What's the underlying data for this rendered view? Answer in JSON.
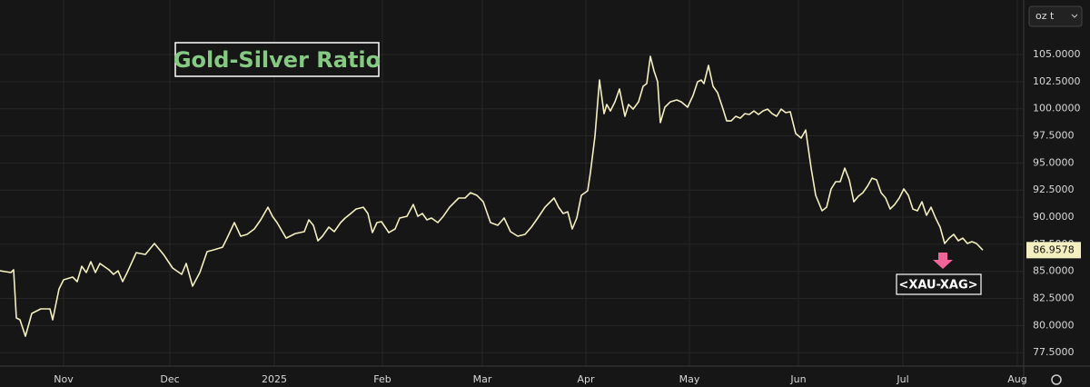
{
  "chart_data": {
    "type": "line",
    "title": "Gold-Silver Ratio",
    "symbol": "<XAU-XAG>",
    "unit": "oz t",
    "color": "#f3efc0",
    "x": [
      0,
      2.4,
      3,
      3.6,
      4.4,
      5.6,
      7,
      9,
      11,
      11.6,
      13,
      14,
      16,
      17,
      18,
      19,
      20,
      21,
      22,
      24,
      25,
      26,
      27,
      28,
      30,
      32,
      34,
      36,
      38,
      40,
      41,
      42.4,
      44,
      45.6,
      47,
      49,
      50,
      51.6,
      53,
      54.4,
      56,
      57.4,
      59,
      60,
      61,
      63,
      65,
      67,
      68,
      69,
      70,
      71,
      72.4,
      73.6,
      75,
      76,
      77,
      78.4,
      80,
      81,
      82,
      83,
      84,
      85.6,
      87,
      88,
      89.6,
      91,
      92,
      93,
      94,
      95,
      96.4,
      97.6,
      99,
      101,
      102.4,
      103.6,
      105,
      106.4,
      108,
      109.6,
      111,
      112.4,
      114,
      115.6,
      117,
      118.4,
      120,
      122,
      123,
      124,
      125,
      126,
      127,
      128,
      129.4,
      130,
      131,
      132,
      133,
      133.6,
      134.4,
      135.4,
      136.4,
      137.6,
      138.4,
      139.4,
      140.6,
      141.6,
      142.4,
      143.2,
      144,
      144.8,
      145.4,
      146.4,
      147.6,
      149,
      150,
      151.4,
      152.6,
      153.6,
      154.4,
      155,
      156,
      157,
      158,
      159.2,
      160,
      161,
      162,
      163,
      164,
      165,
      166,
      167,
      168,
      169,
      170,
      171,
      172,
      173,
      174,
      175.2,
      176.4,
      177.4,
      178.6,
      179.6,
      181,
      182,
      183,
      184,
      185,
      186,
      187,
      188,
      189,
      190,
      191,
      192,
      193,
      194,
      195,
      196,
      197,
      198,
      199,
      200,
      201,
      202,
      203,
      204,
      205,
      206,
      207,
      208,
      209,
      210,
      211,
      212,
      213,
      214,
      215,
      216.4
    ],
    "values": [
      85.05,
      84.89,
      85.14,
      80.7,
      80.53,
      79.02,
      81.12,
      81.54,
      81.54,
      80.53,
      83.38,
      84.22,
      84.47,
      84.05,
      85.47,
      84.89,
      85.89,
      84.89,
      85.73,
      85.14,
      84.72,
      85.05,
      84.05,
      84.89,
      86.73,
      86.56,
      87.57,
      86.56,
      85.31,
      84.72,
      85.73,
      83.63,
      84.89,
      86.82,
      86.98,
      87.23,
      88.07,
      89.5,
      88.24,
      88.41,
      88.91,
      89.75,
      90.92,
      90.08,
      89.5,
      88.07,
      88.49,
      88.66,
      89.75,
      89.25,
      87.82,
      88.24,
      89.08,
      88.66,
      89.5,
      89.92,
      90.25,
      90.75,
      90.92,
      90.34,
      88.58,
      89.5,
      89.58,
      88.58,
      88.91,
      89.92,
      90.08,
      91.17,
      90.08,
      90.34,
      89.75,
      89.92,
      89.5,
      90.08,
      90.92,
      91.76,
      91.76,
      92.26,
      92.01,
      91.42,
      89.5,
      89.25,
      89.92,
      88.66,
      88.24,
      88.41,
      89.08,
      89.92,
      90.92,
      91.76,
      90.92,
      90.34,
      90.5,
      88.91,
      89.92,
      92.01,
      92.43,
      94.11,
      97.46,
      102.65,
      99.55,
      100.39,
      99.8,
      100.64,
      101.82,
      99.3,
      100.39,
      99.97,
      100.64,
      102.07,
      102.32,
      104.83,
      103.49,
      102.49,
      98.72,
      100.14,
      100.64,
      100.81,
      100.64,
      100.14,
      101.23,
      102.49,
      102.65,
      102.32,
      104.0,
      102.07,
      101.48,
      99.97,
      98.88,
      98.88,
      99.3,
      99.13,
      99.55,
      99.47,
      99.8,
      99.47,
      99.8,
      99.97,
      99.55,
      99.3,
      99.97,
      99.64,
      99.72,
      97.71,
      97.29,
      98.04,
      94.52,
      92.01,
      90.59,
      90.92,
      92.6,
      93.27,
      93.27,
      94.52,
      93.44,
      91.42,
      91.93,
      92.26,
      92.85,
      93.6,
      93.44,
      92.26,
      91.76,
      90.75,
      91.17,
      91.76,
      92.6,
      92.01,
      90.75,
      90.59,
      91.42,
      90.17,
      90.92,
      89.92,
      89.08,
      87.57,
      88.07,
      88.41,
      87.82,
      88.07,
      87.57,
      87.74,
      87.57,
      86.9578
    ],
    "xlim": [
      0,
      225.4
    ],
    "ylim": [
      76.26,
      110.03
    ],
    "xticks": [
      {
        "value": 14,
        "label": "Nov"
      },
      {
        "value": 37.4,
        "label": "Dec"
      },
      {
        "value": 60.4,
        "label": "2025"
      },
      {
        "value": 84.2,
        "label": "Feb"
      },
      {
        "value": 106.2,
        "label": "Mar"
      },
      {
        "value": 129,
        "label": "Apr"
      },
      {
        "value": 151.8,
        "label": "May"
      },
      {
        "value": 175.8,
        "label": "Jun"
      },
      {
        "value": 198.8,
        "label": "Jul"
      },
      {
        "value": 224,
        "label": "Aug"
      }
    ],
    "yticks": [
      {
        "value": 77.5,
        "label": "77.5000"
      },
      {
        "value": 80,
        "label": "80.0000"
      },
      {
        "value": 82.5,
        "label": "82.5000"
      },
      {
        "value": 85,
        "label": "85.0000"
      },
      {
        "value": 87.5,
        "label": "87.5000"
      },
      {
        "value": 90,
        "label": "90.0000"
      },
      {
        "value": 92.5,
        "label": "92.5000"
      },
      {
        "value": 95,
        "label": "95.0000"
      },
      {
        "value": 97.5,
        "label": "97.5000"
      },
      {
        "value": 100,
        "label": "100.0000"
      },
      {
        "value": 102.5,
        "label": "102.5000"
      },
      {
        "value": 105,
        "label": "105.0000"
      }
    ],
    "grid": true
  }
}
